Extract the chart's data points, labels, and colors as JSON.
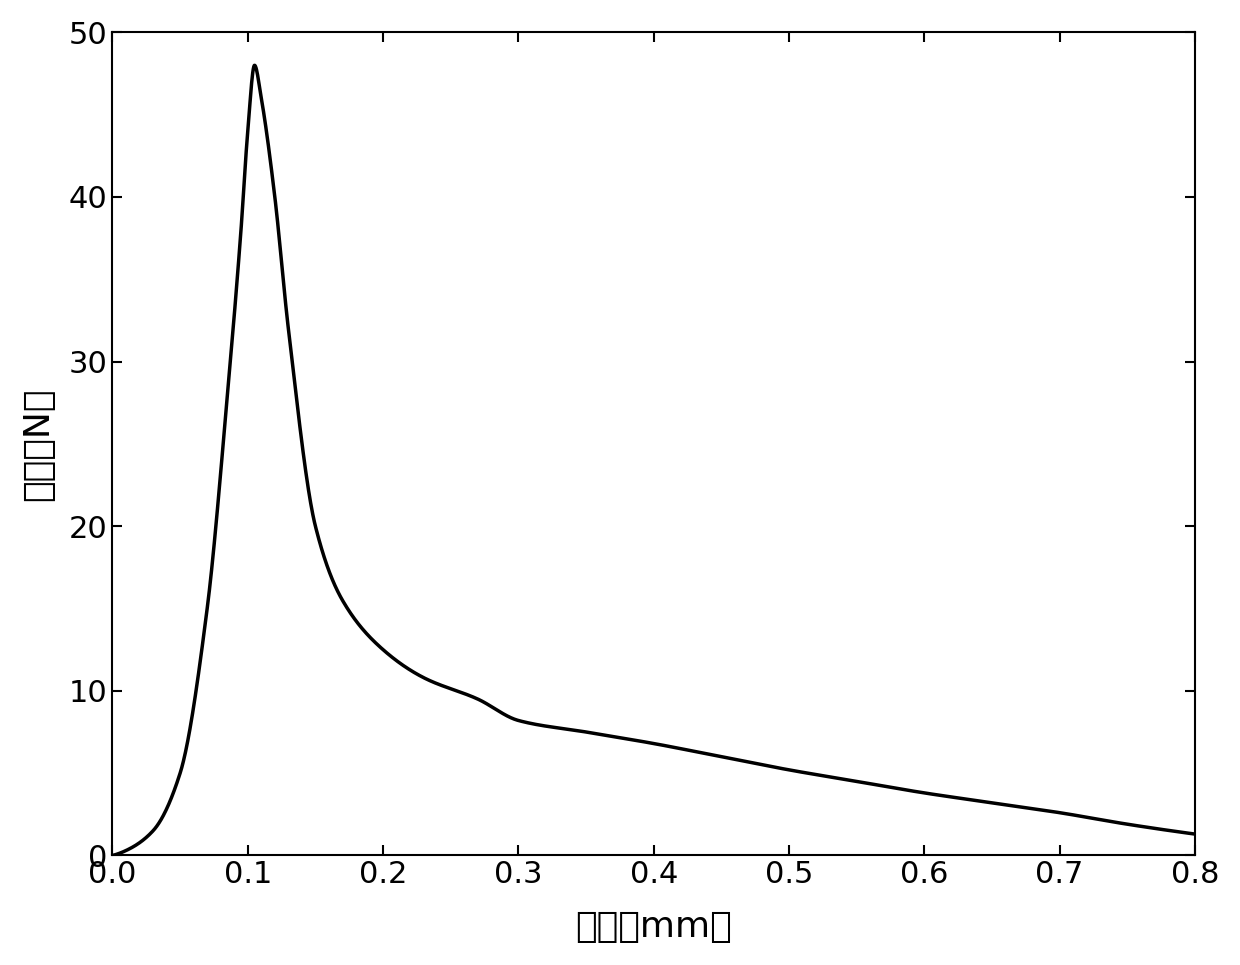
{
  "xlabel": "位移（mm）",
  "ylabel": "载荷（N）",
  "xlim": [
    0.0,
    0.8
  ],
  "ylim": [
    0,
    50
  ],
  "xticks": [
    0.0,
    0.1,
    0.2,
    0.3,
    0.4,
    0.5,
    0.6,
    0.7,
    0.8
  ],
  "yticks": [
    0,
    10,
    20,
    30,
    40,
    50
  ],
  "line_color": "#000000",
  "line_width": 2.5,
  "background_color": "#ffffff",
  "xlabel_fontsize": 26,
  "ylabel_fontsize": 26,
  "tick_fontsize": 22,
  "control_x": [
    0.0,
    0.01,
    0.03,
    0.05,
    0.07,
    0.085,
    0.095,
    0.1,
    0.105,
    0.11,
    0.12,
    0.13,
    0.15,
    0.17,
    0.2,
    0.23,
    0.27,
    0.3,
    0.35,
    0.4,
    0.45,
    0.5,
    0.55,
    0.6,
    0.65,
    0.7,
    0.75,
    0.8
  ],
  "control_y": [
    0.0,
    0.3,
    1.5,
    5.0,
    15.0,
    28.0,
    38.0,
    44.0,
    48.0,
    46.0,
    40.0,
    32.0,
    20.0,
    15.5,
    12.5,
    10.8,
    9.5,
    8.2,
    7.5,
    6.8,
    6.0,
    5.2,
    4.5,
    3.8,
    3.2,
    2.6,
    1.9,
    1.3
  ]
}
